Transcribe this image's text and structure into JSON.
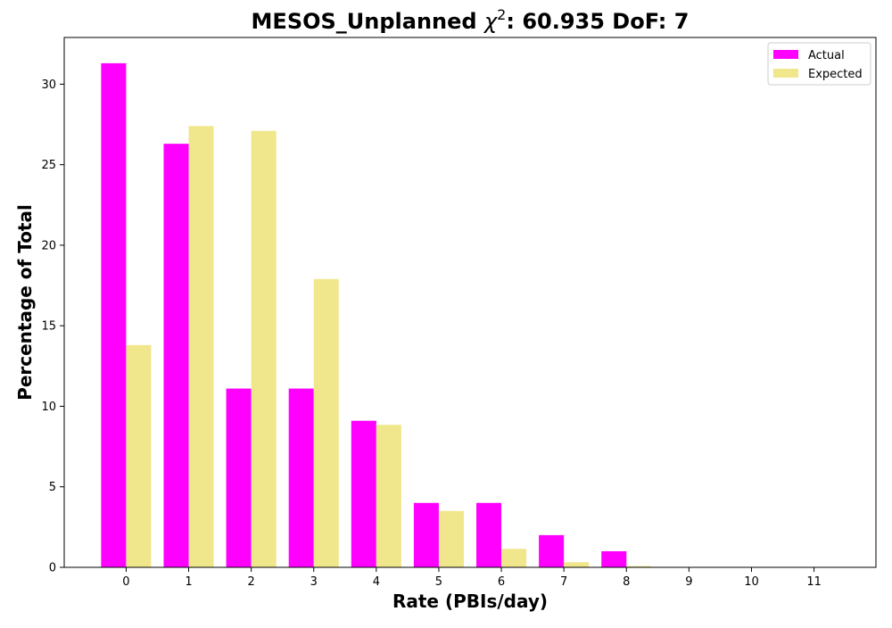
{
  "chart_data": {
    "type": "bar",
    "title_main": "MESOS_Unplanned ",
    "title_chi": "χ",
    "title_sup": "2",
    "title_rest": ": 60.935 DoF: 7",
    "xlabel": "Rate (PBIs/day)",
    "ylabel": "Percentage of Total",
    "categories": [
      "0",
      "1",
      "2",
      "3",
      "4",
      "5",
      "6",
      "7",
      "8",
      "9",
      "10",
      "11"
    ],
    "x_values": [
      0,
      1,
      2,
      3,
      4,
      5,
      6,
      7,
      8,
      9,
      10,
      11
    ],
    "ylim": [
      0,
      32.9
    ],
    "xlim": [
      -0.99,
      11.99
    ],
    "yticks": [
      0,
      5,
      10,
      15,
      20,
      25,
      30
    ],
    "legend_position": "top-right",
    "grid": false,
    "series": [
      {
        "name": "Actual",
        "color": "#ff00ff",
        "offset": -0.2,
        "values": [
          31.3,
          26.3,
          11.1,
          11.1,
          9.1,
          4.0,
          4.0,
          2.0,
          1.0,
          0,
          0,
          0
        ]
      },
      {
        "name": "Expected",
        "color": "#f0e68c",
        "offset": 0.2,
        "values": [
          13.8,
          27.4,
          27.1,
          17.9,
          8.85,
          3.5,
          1.15,
          0.32,
          0.08,
          0.02,
          0.0,
          0.0
        ]
      }
    ],
    "bar_width": 0.4
  }
}
